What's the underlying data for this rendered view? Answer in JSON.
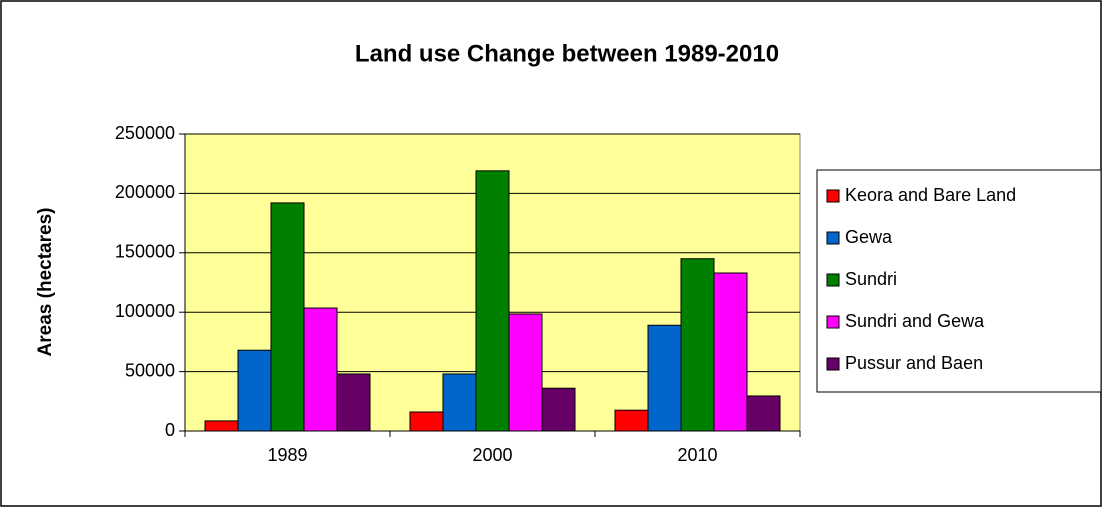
{
  "chart_data": {
    "type": "bar",
    "title": "Land use Change between 1989-2010",
    "y_label": "Areas (hectares)",
    "categories": [
      "1989",
      "2000",
      "2010"
    ],
    "series": [
      {
        "name": "Keora and Bare Land",
        "color": "#ff0000",
        "values": [
          8500,
          16000,
          17500
        ]
      },
      {
        "name": "Gewa",
        "color": "#0066cc",
        "values": [
          68000,
          48000,
          89000
        ]
      },
      {
        "name": "Sundri",
        "color": "#008000",
        "values": [
          192000,
          219000,
          145000
        ]
      },
      {
        "name": "Sundri and Gewa",
        "color": "#ff00ff",
        "values": [
          103500,
          98500,
          133000
        ]
      },
      {
        "name": "Pussur and Baen",
        "color": "#660066",
        "values": [
          48000,
          36000,
          29500
        ]
      }
    ],
    "ylim": [
      0,
      250000
    ],
    "yticks": [
      0,
      50000,
      100000,
      150000,
      200000,
      250000
    ],
    "grid": true,
    "legend": "right",
    "plot_background": "#ffff99"
  }
}
